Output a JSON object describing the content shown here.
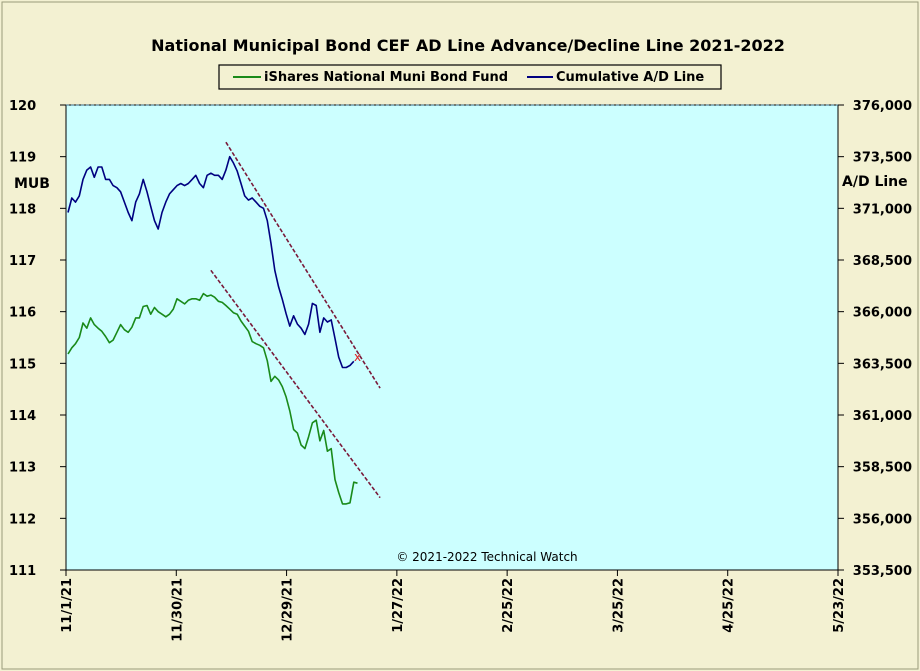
{
  "chart_data": {
    "type": "line",
    "title": "National Municipal Bond CEF AD Line Advance/Decline Line 2021-2022",
    "left_axis_label": "MUB",
    "right_axis_label": "A/D Line",
    "left_ylim": [
      111,
      120
    ],
    "right_ylim": [
      353500,
      376000
    ],
    "left_ticks": [
      "120",
      "119",
      "118",
      "117",
      "116",
      "115",
      "114",
      "113",
      "112",
      "111"
    ],
    "right_ticks": [
      "376,000",
      "373,500",
      "371,000",
      "368,500",
      "366,000",
      "363,500",
      "361,000",
      "358,500",
      "356,000",
      "353,500"
    ],
    "x_tick_labels": [
      "11/1/21",
      "11/30/21",
      "12/29/21",
      "1/27/22",
      "2/25/22",
      "3/25/22",
      "4/25/22",
      "5/23/22"
    ],
    "copyright": "© 2021-2022  Technical  Watch",
    "grid": false,
    "background_color": "#ccffff",
    "frame_color": "#f3f1d2",
    "legend_position": "top-center",
    "series": [
      {
        "name": "iShares National Muni Bond Fund",
        "axis": "left",
        "color": "#1a8a1a",
        "values": [
          115.18,
          115.3,
          115.38,
          115.5,
          115.78,
          115.68,
          115.88,
          115.75,
          115.68,
          115.62,
          115.52,
          115.4,
          115.45,
          115.6,
          115.75,
          115.65,
          115.6,
          115.7,
          115.88,
          115.88,
          116.1,
          116.12,
          115.95,
          116.08,
          116.0,
          115.95,
          115.9,
          115.95,
          116.05,
          116.25,
          116.2,
          116.15,
          116.22,
          116.25,
          116.25,
          116.22,
          116.35,
          116.3,
          116.32,
          116.28,
          116.2,
          116.18,
          116.12,
          116.05,
          115.98,
          115.95,
          115.82,
          115.72,
          115.62,
          115.42,
          115.38,
          115.35,
          115.3,
          115.05,
          114.65,
          114.75,
          114.68,
          114.55,
          114.35,
          114.08,
          113.72,
          113.65,
          113.42,
          113.35,
          113.58,
          113.85,
          113.9,
          113.5,
          113.7,
          113.3,
          113.35,
          112.75,
          112.5,
          112.28,
          112.28,
          112.3,
          112.7,
          112.68
        ]
      },
      {
        "name": "Cumulative A/D Line",
        "axis": "right",
        "color": "#000080",
        "values": [
          370800,
          371500,
          371300,
          371600,
          372400,
          372850,
          373000,
          372500,
          373000,
          373000,
          372400,
          372400,
          372100,
          372000,
          371800,
          371300,
          370800,
          370400,
          371300,
          371700,
          372400,
          371800,
          371100,
          370400,
          370000,
          370800,
          371300,
          371700,
          371900,
          372100,
          372200,
          372100,
          372200,
          372400,
          372600,
          372200,
          372000,
          372600,
          372700,
          372600,
          372600,
          372400,
          372850,
          373500,
          373200,
          372800,
          372200,
          371600,
          371400,
          371500,
          371300,
          371100,
          371000,
          370400,
          369300,
          368000,
          367200,
          366600,
          365900,
          365300,
          365800,
          365400,
          365200,
          364900,
          365400,
          366400,
          366300,
          365000,
          365700,
          365500,
          365600,
          364700,
          363800,
          363300,
          363300,
          363400,
          363600
        ]
      },
      {
        "name": "",
        "type": "trendline",
        "axis": "left",
        "color": "#7a1a3a",
        "x": [
          38,
          83
        ],
        "values": [
          116.8,
          112.4
        ]
      },
      {
        "name": "",
        "type": "trendline",
        "axis": "right",
        "color": "#7a1a3a",
        "x": [
          42,
          83
        ],
        "values": [
          374200,
          362300
        ]
      }
    ],
    "marker": {
      "symbol": "x",
      "color": "#e02020",
      "series": "Cumulative A/D Line",
      "x": 77,
      "value": 363800
    }
  }
}
